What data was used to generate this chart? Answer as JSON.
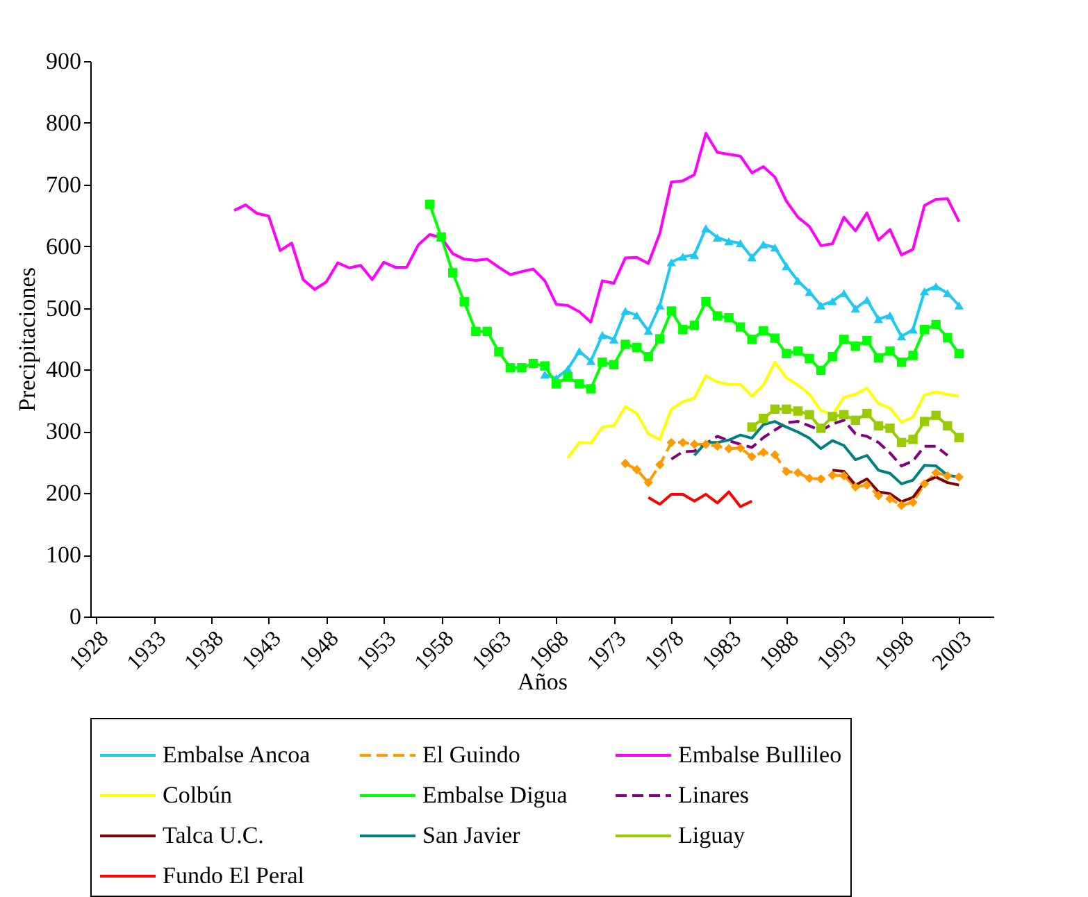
{
  "chart_data": {
    "type": "line",
    "xlabel": "Años",
    "ylabel": "Precipitaciones",
    "xlim": [
      1927.5,
      2006
    ],
    "xticks": [
      1928,
      1933,
      1938,
      1943,
      1948,
      1953,
      1958,
      1963,
      1968,
      1973,
      1978,
      1983,
      1988,
      1993,
      1998,
      2003
    ],
    "ylim": [
      0,
      900
    ],
    "yticks": [
      0,
      100,
      200,
      300,
      400,
      500,
      600,
      700,
      800,
      900
    ],
    "grid": false,
    "legend": "bottom",
    "series": [
      {
        "name": "Embalse Ancoa",
        "color": "#1ec8f0",
        "marker": "triangle",
        "line_style": "solid",
        "x": [
          1967,
          1968,
          1969,
          1970,
          1971,
          1972,
          1973,
          1974,
          1975,
          1976,
          1977,
          1978,
          1979,
          1980,
          1981,
          1982,
          1983,
          1984,
          1985,
          1986,
          1987,
          1988,
          1989,
          1990,
          1991,
          1992,
          1993,
          1994,
          1995,
          1996,
          1997,
          1998,
          1999,
          2000,
          2001,
          2002,
          2003
        ],
        "values": [
          392,
          386,
          401,
          430,
          414,
          456,
          449,
          495,
          488,
          463,
          504,
          574,
          583,
          586,
          629,
          614,
          608,
          605,
          582,
          603,
          598,
          568,
          544,
          526,
          504,
          511,
          524,
          499,
          513,
          482,
          488,
          454,
          465,
          527,
          535,
          524,
          504
        ]
      },
      {
        "name": "El Guindo",
        "color": "#ff9900",
        "marker": "diamond",
        "line_style": "dashed",
        "x": [
          1974,
          1975,
          1976,
          1977,
          1978,
          1979,
          1980,
          1981,
          1982,
          1983,
          1984,
          1985,
          1986,
          1987,
          1988,
          1989,
          1990,
          1991,
          1992,
          1993,
          1994,
          1995,
          1996,
          1997,
          1998,
          1999,
          2000,
          2001,
          2002,
          2003
        ],
        "values": [
          248,
          238,
          217,
          246,
          282,
          282,
          279,
          279,
          276,
          272,
          273,
          259,
          266,
          262,
          235,
          233,
          224,
          223,
          229,
          228,
          210,
          213,
          196,
          191,
          180,
          185,
          215,
          233,
          228,
          226
        ]
      },
      {
        "name": "Embalse Bullileo",
        "color": "#ff00ff",
        "marker": "none",
        "line_style": "solid",
        "x": [
          1940,
          1941,
          1942,
          1943,
          1944,
          1945,
          1946,
          1947,
          1948,
          1949,
          1950,
          1951,
          1952,
          1953,
          1954,
          1955,
          1956,
          1957,
          1958,
          1959,
          1960,
          1961,
          1962,
          1963,
          1964,
          1965,
          1966,
          1967,
          1968,
          1969,
          1970,
          1971,
          1972,
          1973,
          1974,
          1975,
          1976,
          1977,
          1978,
          1979,
          1980,
          1981,
          1982,
          1983,
          1984,
          1985,
          1986,
          1987,
          1988,
          1989,
          1990,
          1991,
          1992,
          1993,
          1994,
          1995,
          1996,
          1997,
          1998,
          1999,
          2000,
          2001,
          2002,
          2003
        ],
        "values": [
          658,
          667,
          653,
          649,
          593,
          605,
          546,
          530,
          542,
          573,
          565,
          569,
          546,
          574,
          566,
          566,
          602,
          619,
          614,
          588,
          579,
          577,
          579,
          566,
          554,
          559,
          563,
          544,
          506,
          504,
          494,
          477,
          544,
          540,
          581,
          582,
          572,
          621,
          704,
          706,
          716,
          783,
          752,
          749,
          746,
          719,
          729,
          712,
          673,
          647,
          632,
          601,
          604,
          647,
          625,
          654,
          610,
          627,
          586,
          595,
          666,
          676,
          677,
          640
        ]
      },
      {
        "name": "Colbún",
        "color": "#ffff00",
        "marker": "none",
        "line_style": "solid",
        "x": [
          1969,
          1970,
          1971,
          1972,
          1973,
          1974,
          1975,
          1976,
          1977,
          1978,
          1979,
          1980,
          1981,
          1982,
          1983,
          1984,
          1985,
          1986,
          1987,
          1988,
          1989,
          1990,
          1991,
          1992,
          1993,
          1994,
          1995,
          1996,
          1997,
          1998,
          1999,
          2000,
          2001,
          2002,
          2003
        ],
        "values": [
          257,
          282,
          281,
          307,
          309,
          340,
          329,
          296,
          287,
          336,
          348,
          354,
          390,
          380,
          376,
          376,
          357,
          375,
          412,
          387,
          375,
          360,
          334,
          327,
          355,
          360,
          370,
          345,
          338,
          315,
          323,
          359,
          364,
          360,
          357
        ]
      },
      {
        "name": "Embalse Digua",
        "color": "#00ff00",
        "marker": "square",
        "line_style": "solid",
        "x": [
          1957,
          1958,
          1959,
          1960,
          1961,
          1962,
          1963,
          1964,
          1965,
          1966,
          1967,
          1968,
          1969,
          1970,
          1971,
          1972,
          1973,
          1974,
          1975,
          1976,
          1977,
          1978,
          1979,
          1980,
          1981,
          1982,
          1983,
          1984,
          1985,
          1986,
          1987,
          1988,
          1989,
          1990,
          1991,
          1992,
          1993,
          1994,
          1995,
          1996,
          1997,
          1998,
          1999,
          2000,
          2001,
          2002,
          2003
        ],
        "values": [
          668,
          615,
          557,
          510,
          462,
          462,
          429,
          403,
          403,
          410,
          406,
          377,
          388,
          377,
          369,
          412,
          408,
          441,
          436,
          421,
          450,
          495,
          465,
          472,
          510,
          487,
          484,
          469,
          449,
          463,
          451,
          426,
          430,
          418,
          399,
          421,
          449,
          438,
          447,
          419,
          430,
          412,
          423,
          465,
          473,
          452,
          426
        ]
      },
      {
        "name": "Linares",
        "color": "#800080",
        "marker": "none",
        "line_style": "dashed",
        "x": [
          1978,
          1979,
          1980,
          1981,
          1982,
          1983,
          1984,
          1985,
          1986,
          1987,
          1988,
          1989,
          1990,
          1991,
          1992,
          1993,
          1994,
          1995,
          1996,
          1997,
          1998,
          1999,
          2000,
          2001,
          2002
        ],
        "values": [
          255,
          267,
          268,
          280,
          292,
          285,
          279,
          274,
          290,
          302,
          314,
          316,
          309,
          301,
          312,
          318,
          296,
          292,
          282,
          265,
          244,
          252,
          276,
          276,
          261
        ]
      },
      {
        "name": "Talca U.C.",
        "color": "#800000",
        "marker": "none",
        "line_style": "solid",
        "x": [
          1992,
          1993,
          1994,
          1995,
          1996,
          1997,
          1998,
          1999,
          2000,
          2001,
          2002,
          2003
        ],
        "values": [
          237,
          235,
          213,
          223,
          202,
          199,
          186,
          193,
          218,
          226,
          217,
          213
        ]
      },
      {
        "name": "San Javier",
        "color": "#008080",
        "marker": "none",
        "line_style": "solid",
        "x": [
          1980,
          1981,
          1982,
          1983,
          1984,
          1985,
          1986,
          1987,
          1988,
          1989,
          1990,
          1991,
          1992,
          1993,
          1994,
          1995,
          1996,
          1997,
          1998,
          1999,
          2000,
          2001,
          2002,
          2003
        ],
        "values": [
          261,
          282,
          282,
          286,
          294,
          289,
          311,
          316,
          307,
          299,
          289,
          272,
          285,
          277,
          254,
          261,
          237,
          232,
          215,
          221,
          245,
          244,
          229,
          226
        ]
      },
      {
        "name": "Liguay",
        "color": "#99cc00",
        "marker": "square",
        "line_style": "solid",
        "x": [
          1985,
          1986,
          1987,
          1988,
          1989,
          1990,
          1991,
          1992,
          1993,
          1994,
          1995,
          1996,
          1997,
          1998,
          1999,
          2000,
          2001,
          2002,
          2003
        ],
        "values": [
          307,
          321,
          336,
          336,
          333,
          327,
          305,
          324,
          327,
          318,
          329,
          309,
          305,
          282,
          287,
          316,
          326,
          309,
          290
        ]
      },
      {
        "name": "Fundo El Peral",
        "color": "#ff0000",
        "marker": "none",
        "line_style": "solid",
        "x": [
          1976,
          1977,
          1978,
          1979,
          1980,
          1981,
          1982,
          1983,
          1984,
          1985
        ],
        "values": [
          193,
          182,
          198,
          198,
          187,
          198,
          184,
          202,
          178,
          187
        ]
      }
    ]
  }
}
